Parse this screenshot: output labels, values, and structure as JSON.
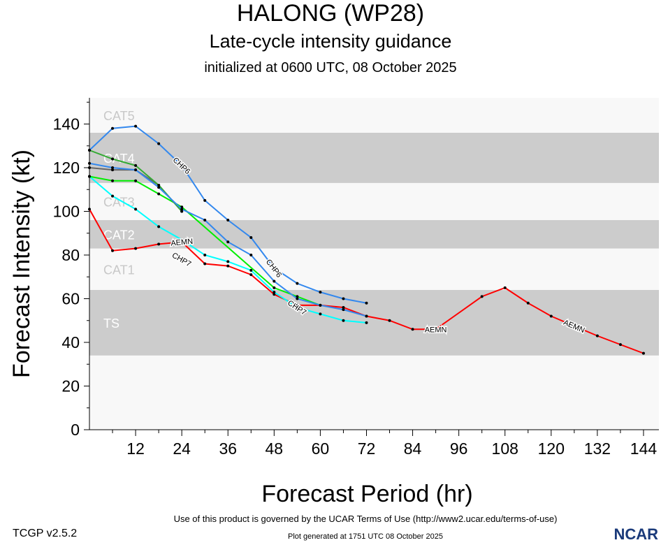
{
  "header": {
    "title": "HALONG (WP28)",
    "subtitle": "Late-cycle intensity guidance",
    "initialized": "initialized at 0600 UTC, 08 October 2025"
  },
  "footer": {
    "terms": "Use of this product is governed by the UCAR Terms of Use (http://www2.ucar.edu/terms-of-use)",
    "generated": "Plot generated at 1751 UTC   08 October 2025",
    "version": "TCGP v2.5.2",
    "logo": "NCAR"
  },
  "chart_data": {
    "type": "line",
    "xlabel": "Forecast Period (hr)",
    "ylabel": "Forecast Intensity (kt)",
    "xlim": [
      0,
      148
    ],
    "ylim": [
      0,
      152
    ],
    "xticks": [
      12,
      24,
      36,
      48,
      60,
      72,
      84,
      96,
      108,
      120,
      132,
      144
    ],
    "yticks": [
      0,
      20,
      40,
      60,
      80,
      100,
      120,
      140
    ],
    "bands": [
      {
        "label": "TS",
        "range": [
          34,
          64
        ],
        "shaded": true
      },
      {
        "label": "CAT1",
        "range": [
          64,
          83
        ],
        "shaded": false
      },
      {
        "label": "CAT2",
        "range": [
          83,
          96
        ],
        "shaded": true
      },
      {
        "label": "CAT3",
        "range": [
          96,
          113
        ],
        "shaded": false
      },
      {
        "label": "CAT4",
        "range": [
          113,
          136
        ],
        "shaded": true
      },
      {
        "label": "CAT5",
        "range": [
          136,
          152
        ],
        "shaded": false
      }
    ],
    "series": [
      {
        "name": "AEMN",
        "color": "#ff0000",
        "x": [
          0,
          6,
          12,
          18,
          24,
          30,
          36,
          42,
          48,
          54,
          60,
          66,
          72,
          78,
          84,
          90,
          102,
          108,
          114,
          120,
          132,
          138,
          144
        ],
        "y": [
          101,
          82,
          83,
          85,
          86,
          76,
          75,
          71,
          62,
          57,
          57,
          56,
          52,
          50,
          46,
          46,
          61,
          65,
          58,
          52,
          43,
          39,
          35
        ],
        "labels_at": [
          24,
          90,
          126
        ]
      },
      {
        "name": "CHP7",
        "color": "#00ffff",
        "x": [
          0,
          6,
          12,
          18,
          24,
          30,
          36,
          42,
          48,
          54,
          60,
          66,
          72
        ],
        "y": [
          116,
          107,
          101,
          93,
          87,
          80,
          77,
          73,
          63,
          56,
          53,
          50,
          49
        ],
        "labels_at": [
          24,
          54
        ]
      },
      {
        "name": "",
        "color": "#00ee00",
        "x": [
          0,
          6,
          12,
          18,
          24,
          48,
          54,
          60
        ],
        "y": [
          116,
          114,
          114,
          108,
          102,
          65,
          61,
          57
        ],
        "labels_at": []
      },
      {
        "name": "",
        "color": "#666666",
        "x": [
          0,
          6,
          12,
          18,
          24
        ],
        "y": [
          120,
          119,
          119,
          112,
          100
        ],
        "labels_at": []
      },
      {
        "name": "",
        "color": "#33aa33",
        "x": [
          0,
          6,
          12,
          18,
          24
        ],
        "y": [
          128,
          124,
          121,
          112,
          100
        ],
        "labels_at": []
      },
      {
        "name": "",
        "color": "#3388ee",
        "x": [
          0,
          6,
          12,
          18,
          24,
          30,
          36,
          42,
          48,
          54,
          60,
          66,
          72
        ],
        "y": [
          122,
          120,
          119,
          111,
          101,
          96,
          86,
          80,
          68,
          60,
          57,
          55,
          52
        ],
        "labels_at": []
      },
      {
        "name": "CHP6",
        "color": "#3388ee",
        "x": [
          0,
          6,
          12,
          18,
          24,
          30,
          36,
          42,
          48,
          54,
          60,
          66,
          72
        ],
        "y": [
          128,
          138,
          139,
          131,
          121,
          105,
          96,
          88,
          74,
          67,
          63,
          60,
          58
        ],
        "labels_at": [
          24,
          48
        ]
      }
    ]
  }
}
